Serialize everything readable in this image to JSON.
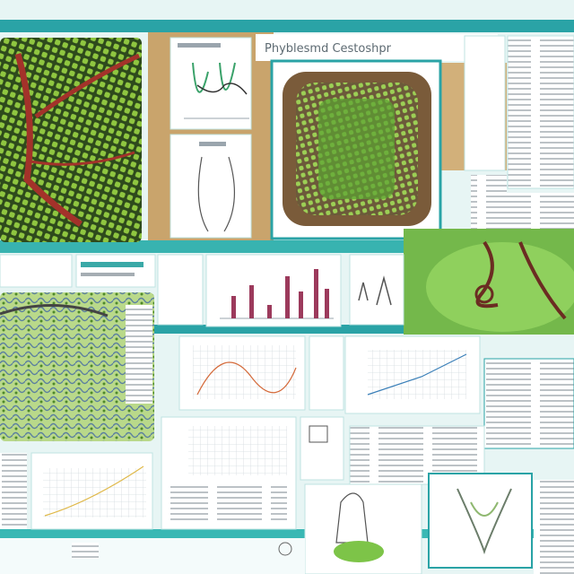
{
  "header": {
    "title": "Phyblesmd Cestoshpr"
  }
}
